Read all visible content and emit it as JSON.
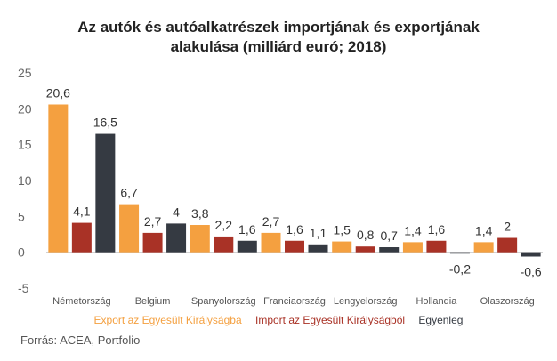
{
  "chart_data": {
    "type": "bar",
    "title_line1": "Az autók és autóalkatrészek importjának és exportjának",
    "title_line2": "alakulása (milliárd euró; 2018)",
    "categories": [
      "Németország",
      "Belgium",
      "Spanyolország",
      "Franciaország",
      "Lengyelország",
      "Hollandia",
      "Olaszország"
    ],
    "series": [
      {
        "name": "Export az Egyesült Királyságba",
        "color": "#F4A040",
        "values": [
          20.6,
          6.7,
          3.8,
          2.7,
          1.5,
          1.4,
          1.4
        ],
        "labels": [
          "20,6",
          "6,7",
          "3,8",
          "2,7",
          "1,5",
          "1,4",
          "1,4"
        ]
      },
      {
        "name": "Import az Egyesült Királyságból",
        "color": "#A93226",
        "values": [
          4.1,
          2.7,
          2.2,
          1.6,
          0.8,
          1.6,
          2
        ],
        "labels": [
          "4,1",
          "2,7",
          "2,2",
          "1,6",
          "0,8",
          "1,6",
          "2"
        ]
      },
      {
        "name": "Egyenleg",
        "color": "#353A42",
        "values": [
          16.5,
          4,
          1.6,
          1.1,
          0.7,
          -0.2,
          -0.6
        ],
        "labels": [
          "16,5",
          "4",
          "1,6",
          "1,1",
          "0,7",
          "-0,2",
          "-0,6"
        ]
      }
    ],
    "yticks": [
      -5,
      0,
      5,
      10,
      15,
      20,
      25
    ],
    "ylim": [
      -5,
      25
    ],
    "legend_position": "bottom",
    "source": "Forrás: ACEA, Portfolio"
  }
}
